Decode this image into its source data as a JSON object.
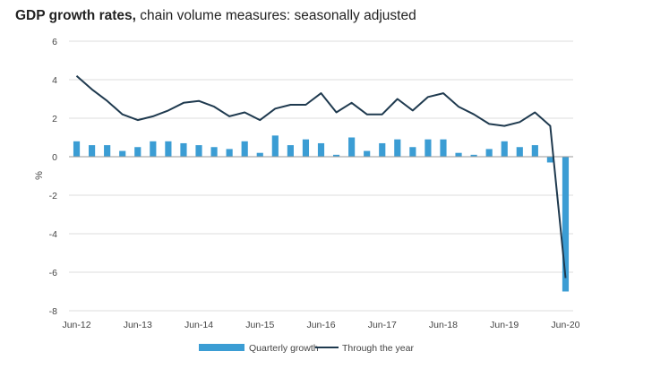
{
  "title": {
    "bold": "GDP growth rates,",
    "rest": " chain volume measures: seasonally adjusted"
  },
  "chart_data": {
    "type": "bar",
    "title": "GDP growth rates, chain volume measures: seasonally adjusted",
    "xlabel": "",
    "ylabel": "%",
    "ylim": [
      -8,
      6
    ],
    "yticks": [
      6,
      4,
      2,
      0,
      -2,
      -4,
      -6,
      -8
    ],
    "grid": true,
    "legend_position": "bottom",
    "colors": {
      "bar": "#3b9dd4",
      "line": "#1f3a4f",
      "grid": "#dcdcdc"
    },
    "x_tick_labels": [
      "Jun-12",
      "Jun-13",
      "Jun-14",
      "Jun-15",
      "Jun-16",
      "Jun-17",
      "Jun-18",
      "Jun-19",
      "Jun-20"
    ],
    "x_tick_indices": [
      0,
      4,
      8,
      12,
      16,
      20,
      24,
      28,
      32
    ],
    "categories": [
      "Jun-12",
      "Sep-12",
      "Dec-12",
      "Mar-13",
      "Jun-13",
      "Sep-13",
      "Dec-13",
      "Mar-14",
      "Jun-14",
      "Sep-14",
      "Dec-14",
      "Mar-15",
      "Jun-15",
      "Sep-15",
      "Dec-15",
      "Mar-16",
      "Jun-16",
      "Sep-16",
      "Dec-16",
      "Mar-17",
      "Jun-17",
      "Sep-17",
      "Dec-17",
      "Mar-18",
      "Jun-18",
      "Sep-18",
      "Dec-18",
      "Mar-19",
      "Jun-19",
      "Sep-19",
      "Dec-19",
      "Mar-20",
      "Jun-20"
    ],
    "series": [
      {
        "name": "Quarterly growth",
        "kind": "bar",
        "values": [
          0.8,
          0.6,
          0.6,
          0.3,
          0.5,
          0.8,
          0.8,
          0.7,
          0.6,
          0.5,
          0.4,
          0.8,
          0.2,
          1.1,
          0.6,
          0.9,
          0.7,
          0.1,
          1.0,
          0.3,
          0.7,
          0.9,
          0.5,
          0.9,
          0.9,
          0.2,
          0.1,
          0.4,
          0.8,
          0.5,
          0.6,
          -0.3,
          -7.0
        ]
      },
      {
        "name": "Through the year",
        "kind": "line",
        "values": [
          4.2,
          3.5,
          2.9,
          2.2,
          1.9,
          2.1,
          2.4,
          2.8,
          2.9,
          2.6,
          2.1,
          2.3,
          1.9,
          2.5,
          2.7,
          2.7,
          3.3,
          2.3,
          2.8,
          2.2,
          2.2,
          3.0,
          2.4,
          3.1,
          3.3,
          2.6,
          2.2,
          1.7,
          1.6,
          1.8,
          2.3,
          1.6,
          -6.3
        ]
      }
    ]
  }
}
